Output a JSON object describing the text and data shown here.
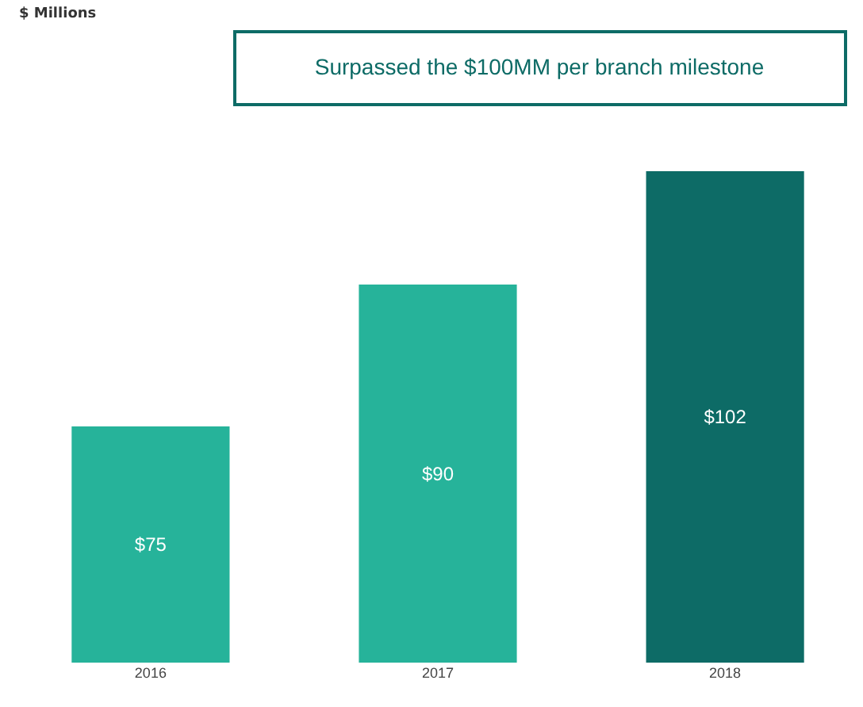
{
  "chart_data": {
    "type": "bar",
    "categories": [
      "2016",
      "2017",
      "2018"
    ],
    "values": [
      75,
      90,
      102
    ],
    "colors": [
      "#26b39a",
      "#26b39a",
      "#0d6b66"
    ],
    "value_labels": [
      "$75",
      "$90",
      "$102"
    ],
    "ylim": [
      50,
      102
    ],
    "annotations": [
      "$ Millions",
      "Surpassed the $100MM  per branch milestone"
    ]
  }
}
